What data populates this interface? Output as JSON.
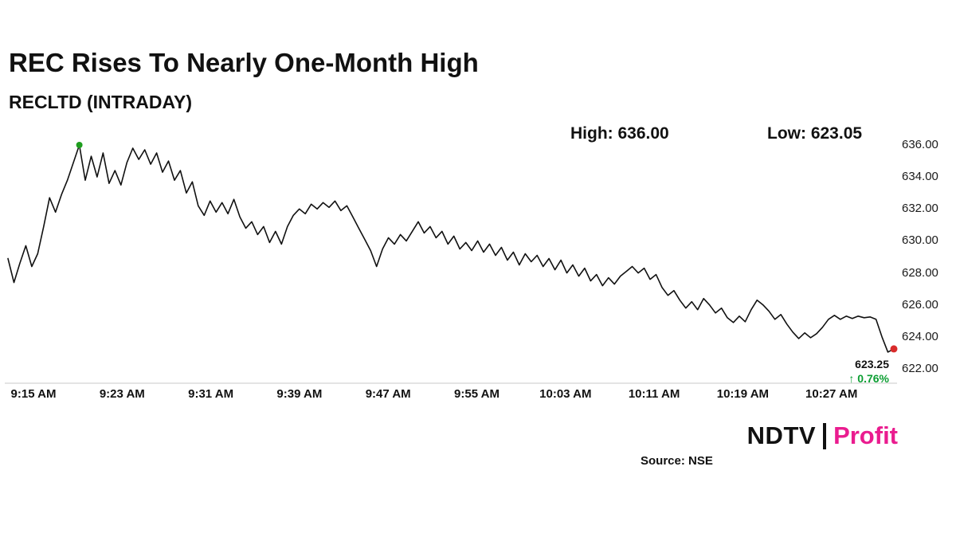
{
  "page": {
    "background": "#ffffff"
  },
  "header": {
    "title": "REC Rises To Nearly One-Month High",
    "subtitle": "RECLTD (INTRADAY)",
    "high_label": "High: 636.00",
    "low_label": "Low: 623.05"
  },
  "annotations": {
    "last_price": "623.25",
    "change": "↑ 0.76%",
    "change_color": "#0b9e32"
  },
  "footer": {
    "source": "Source: NSE",
    "brand_ndtv": "NDTV",
    "brand_profit": "Profit",
    "brand_profit_color": "#ea1c8f"
  },
  "chart_data": {
    "type": "line",
    "title": "REC Rises To Nearly One-Month High",
    "subtitle": "RECLTD (INTRADAY)",
    "symbol": "RECLTD",
    "session": "INTRADAY",
    "high": 636.0,
    "low": 623.05,
    "last_price": 623.25,
    "change_pct": "0.76%",
    "direction": "up",
    "x_labels": [
      "9:15 AM",
      "9:23 AM",
      "9:31 AM",
      "9:39 AM",
      "9:47 AM",
      "9:55 AM",
      "10:03 AM",
      "10:11 AM",
      "10:19 AM",
      "10:27 AM"
    ],
    "y_ticks": [
      "636.00",
      "634.00",
      "632.00",
      "630.00",
      "628.00",
      "626.00",
      "624.00",
      "622.00"
    ],
    "ylim": [
      622,
      636
    ],
    "grid": false,
    "legend": false,
    "line_color": "#111111",
    "high_marker_color": "#1e9e1e",
    "last_marker_color": "#d92b2b",
    "values": [
      628.9,
      627.4,
      628.6,
      629.7,
      628.4,
      629.2,
      630.9,
      632.7,
      631.8,
      632.9,
      633.8,
      634.9,
      636.0,
      633.8,
      635.3,
      634.0,
      635.5,
      633.6,
      634.4,
      633.5,
      634.9,
      635.8,
      635.1,
      635.7,
      634.8,
      635.5,
      634.3,
      635.0,
      633.8,
      634.4,
      633.0,
      633.7,
      632.2,
      631.6,
      632.5,
      631.8,
      632.4,
      631.7,
      632.6,
      631.5,
      630.8,
      631.2,
      630.4,
      630.9,
      629.9,
      630.6,
      629.8,
      630.9,
      631.6,
      632.0,
      631.7,
      632.3,
      632.0,
      632.4,
      632.1,
      632.5,
      631.9,
      632.2,
      631.5,
      630.8,
      630.1,
      629.4,
      628.4,
      629.5,
      630.2,
      629.8,
      630.4,
      630.0,
      630.6,
      631.2,
      630.5,
      630.9,
      630.2,
      630.6,
      629.8,
      630.3,
      629.5,
      629.9,
      629.4,
      630.0,
      629.3,
      629.8,
      629.1,
      629.6,
      628.8,
      629.3,
      628.5,
      629.2,
      628.7,
      629.1,
      628.4,
      628.9,
      628.2,
      628.8,
      628.0,
      628.5,
      627.8,
      628.3,
      627.5,
      627.9,
      627.2,
      627.7,
      627.3,
      627.8,
      628.1,
      628.4,
      628.0,
      628.3,
      627.6,
      627.9,
      627.1,
      626.6,
      626.9,
      626.3,
      625.8,
      626.2,
      625.7,
      626.4,
      626.0,
      625.5,
      625.8,
      625.2,
      624.9,
      625.3,
      624.95,
      625.7,
      626.3,
      626.0,
      625.6,
      625.1,
      625.4,
      624.8,
      624.3,
      623.9,
      624.25,
      623.95,
      624.2,
      624.6,
      625.1,
      625.35,
      625.1,
      625.3,
      625.15,
      625.3,
      625.2,
      625.25,
      625.1,
      624.0,
      623.05,
      623.25
    ]
  }
}
